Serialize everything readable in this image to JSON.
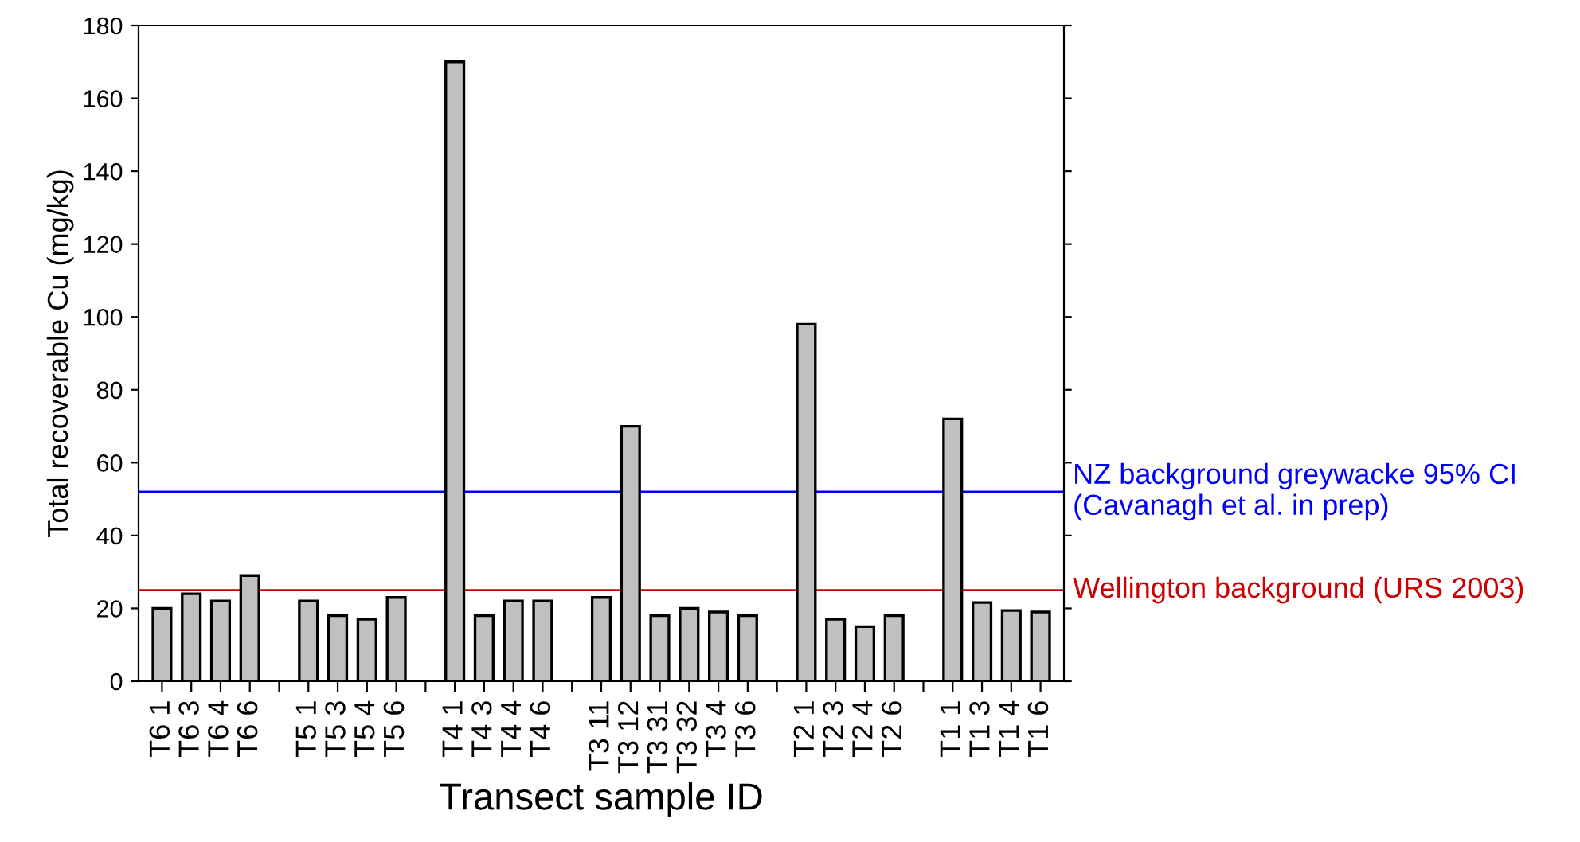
{
  "chart_data": {
    "type": "bar",
    "xlabel": "Transect sample ID",
    "ylabel": "Total recoverable Cu (mg/kg)",
    "categories": [
      "T6 1",
      "T6 3",
      "T6 4",
      "T6 6",
      null,
      "T5 1",
      "T5 3",
      "T5 4",
      "T5 6",
      null,
      "T4 1",
      "T4 3",
      "T4 4",
      "T4 6",
      null,
      "T3 11",
      "T3 12",
      "T3 31",
      "T3 32",
      "T3 4",
      "T3 6",
      null,
      "T2 1",
      "T2 3",
      "T2 4",
      "T2 6",
      null,
      "T1 1",
      "T1 3",
      "T1 4",
      "T1 6"
    ],
    "values": [
      20,
      24,
      22,
      29,
      null,
      22,
      18,
      17,
      23,
      null,
      170,
      18,
      22,
      22,
      null,
      23,
      70,
      18,
      20,
      19,
      18,
      null,
      98,
      17,
      15,
      18,
      null,
      72,
      21.6,
      19.4,
      19
    ],
    "color": "#c0c0c0",
    "ylim": [
      0,
      180
    ],
    "yticks": [
      0,
      20,
      40,
      60,
      80,
      100,
      120,
      140,
      160,
      180
    ],
    "grid": false,
    "legend": false,
    "ref_lines": [
      {
        "axis": "y",
        "value": 52,
        "label": "NZ background greywacke 95% CI\n(Cavanagh et al. in prep)",
        "color": "#0000ff"
      },
      {
        "axis": "y",
        "value": 25,
        "label": "Wellington background (URS 2003)",
        "color": "#cc0000"
      }
    ]
  }
}
